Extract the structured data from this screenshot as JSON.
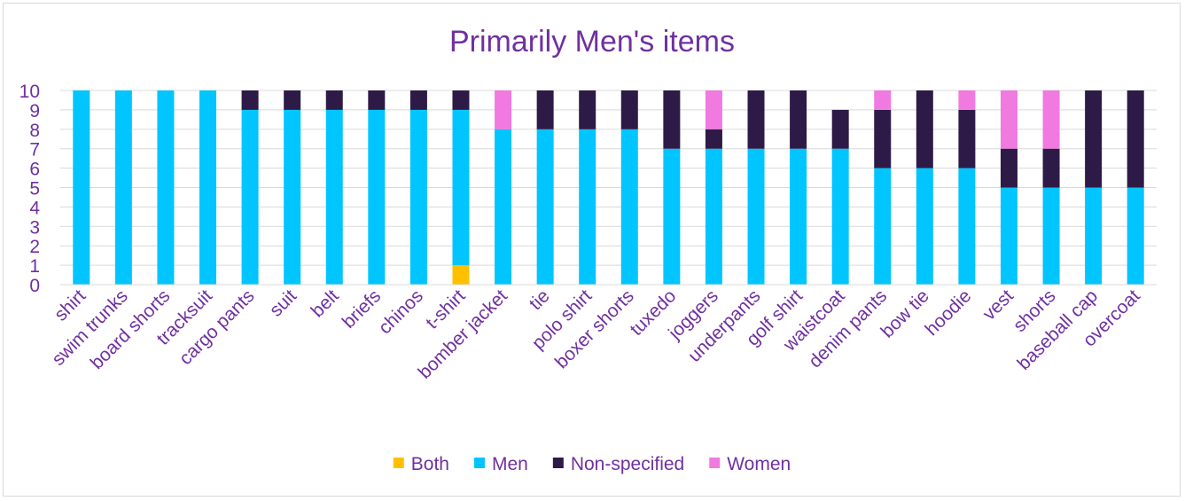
{
  "chart_data": {
    "type": "bar",
    "stacked": true,
    "title": "Primarily Men's items",
    "xlabel": "",
    "ylabel": "",
    "ylim": [
      0,
      10
    ],
    "yticks": [
      "0",
      "1",
      "2",
      "3",
      "4",
      "5",
      "6",
      "7",
      "8",
      "9",
      "10"
    ],
    "grid": true,
    "legend_position": "bottom",
    "categories": [
      "shirt",
      "swim trunks",
      "board shorts",
      "tracksuit",
      "cargo pants",
      "suit",
      "belt",
      "briefs",
      "chinos",
      "t-shirt",
      "bomber jacket",
      "tie",
      "polo shirt",
      "boxer shorts",
      "tuxedo",
      "joggers",
      "underpants",
      "golf shirt",
      "waistcoat",
      "denim pants",
      "bow tie",
      "hoodie",
      "vest",
      "shorts",
      "baseball cap",
      "overcoat"
    ],
    "series": [
      {
        "name": "Both",
        "color": "#ffc000",
        "values": [
          0,
          0,
          0,
          0,
          0,
          0,
          0,
          0,
          0,
          1,
          0,
          0,
          0,
          0,
          0,
          0,
          0,
          0,
          0,
          0,
          0,
          0,
          0,
          0,
          0,
          0
        ]
      },
      {
        "name": "Men",
        "color": "#00c5ff",
        "values": [
          10,
          10,
          10,
          10,
          9,
          9,
          9,
          9,
          9,
          8,
          8,
          8,
          8,
          8,
          7,
          7,
          7,
          7,
          7,
          6,
          6,
          6,
          5,
          5,
          5,
          5
        ]
      },
      {
        "name": "Non-specified",
        "color": "#2e1a47",
        "values": [
          0,
          0,
          0,
          0,
          1,
          1,
          1,
          1,
          1,
          1,
          0,
          2,
          2,
          2,
          3,
          1,
          3,
          3,
          2,
          3,
          4,
          3,
          2,
          2,
          5,
          5
        ]
      },
      {
        "name": "Women",
        "color": "#f07ae0",
        "values": [
          0,
          0,
          0,
          0,
          0,
          0,
          0,
          0,
          0,
          0,
          2,
          0,
          0,
          0,
          0,
          2,
          0,
          0,
          0,
          1,
          0,
          1,
          3,
          3,
          0,
          0
        ]
      }
    ]
  }
}
